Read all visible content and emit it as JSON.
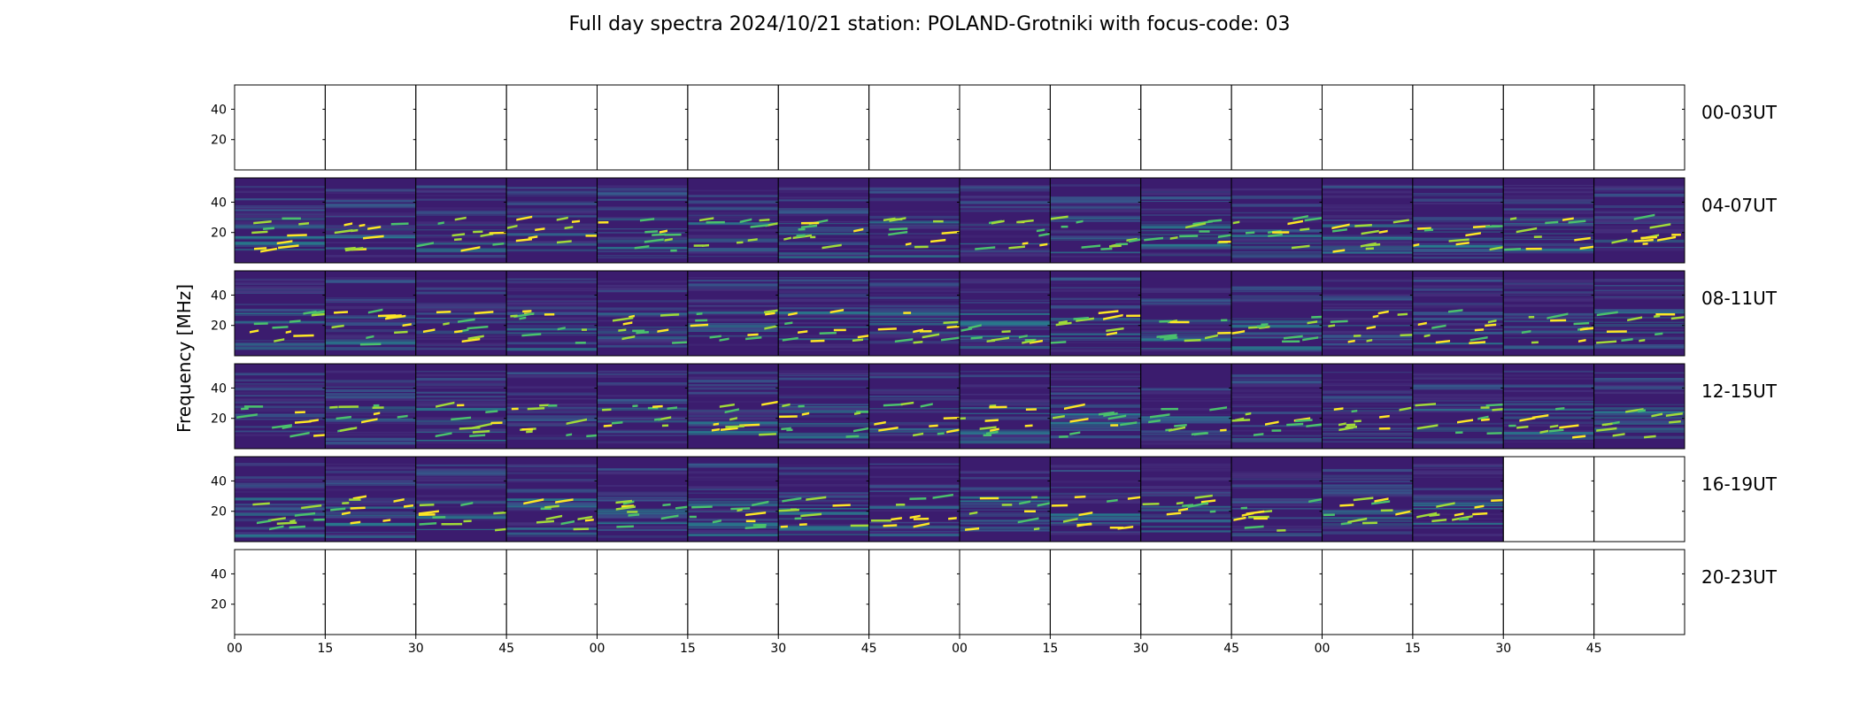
{
  "chart_data": {
    "type": "heatmap",
    "title": "Full day spectra 2024/10/21 station: POLAND-Grotniki with focus-code: 03",
    "ylabel": "Frequency [MHz]",
    "y_ticks": [
      "40",
      "20"
    ],
    "x_ticks": [
      "00",
      "15",
      "30",
      "45",
      "00",
      "15",
      "30",
      "45",
      "00",
      "15",
      "30",
      "45",
      "00",
      "15",
      "30",
      "45"
    ],
    "colormap": "viridis",
    "rows": [
      {
        "label": "00-03UT",
        "panels": [
          0,
          0,
          0,
          0,
          0,
          0,
          0,
          0,
          0,
          0,
          0,
          0,
          0,
          0,
          0,
          0
        ]
      },
      {
        "label": "04-07UT",
        "panels": [
          1,
          1,
          1,
          1,
          1,
          1,
          1,
          1,
          1,
          1,
          1,
          1,
          1,
          1,
          1,
          1
        ]
      },
      {
        "label": "08-11UT",
        "panels": [
          1,
          1,
          1,
          1,
          1,
          1,
          1,
          1,
          1,
          1,
          1,
          1,
          1,
          1,
          1,
          1
        ]
      },
      {
        "label": "12-15UT",
        "panels": [
          1,
          1,
          1,
          1,
          1,
          1,
          1,
          1,
          1,
          1,
          1,
          1,
          1,
          1,
          1,
          1
        ]
      },
      {
        "label": "16-19UT",
        "panels": [
          1,
          1,
          1,
          1,
          1,
          1,
          1,
          1,
          1,
          1,
          1,
          1,
          1,
          1,
          0,
          0
        ]
      },
      {
        "label": "20-23UT",
        "panels": [
          0,
          0,
          0,
          0,
          0,
          0,
          0,
          0,
          0,
          0,
          0,
          0,
          0,
          0,
          0,
          0
        ]
      }
    ]
  }
}
